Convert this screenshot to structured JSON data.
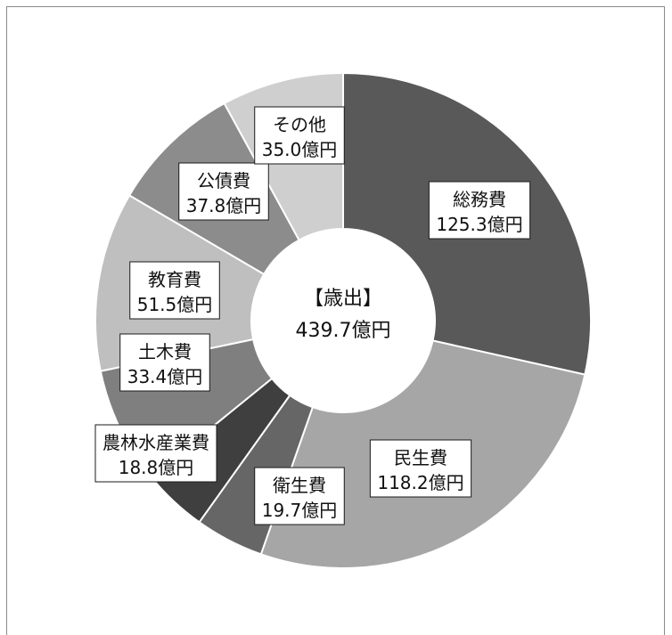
{
  "chart_data": {
    "type": "pie",
    "style": "donut",
    "center_label": [
      "【歳出】",
      "439.7億円"
    ],
    "slices": [
      {
        "name": "総務費",
        "value": 125.3,
        "value_label": "125.3億円",
        "color": "#595959"
      },
      {
        "name": "民生費",
        "value": 118.2,
        "value_label": "118.2億円",
        "color": "#a6a6a6"
      },
      {
        "name": "衛生費",
        "value": 19.7,
        "value_label": "19.7億円",
        "color": "#666666"
      },
      {
        "name": "農林水産業費",
        "value": 18.8,
        "value_label": "18.8億円",
        "color": "#3f3f3f"
      },
      {
        "name": "土木費",
        "value": 33.4,
        "value_label": "33.4億円",
        "color": "#7f7f7f"
      },
      {
        "name": "教育費",
        "value": 51.5,
        "value_label": "51.5億円",
        "color": "#bfbfbf"
      },
      {
        "name": "公債費",
        "value": 37.8,
        "value_label": "37.8億円",
        "color": "#8c8c8c"
      },
      {
        "name": "その他",
        "value": 35.0,
        "value_label": "35.0億円",
        "color": "#cfcfcf"
      }
    ]
  }
}
